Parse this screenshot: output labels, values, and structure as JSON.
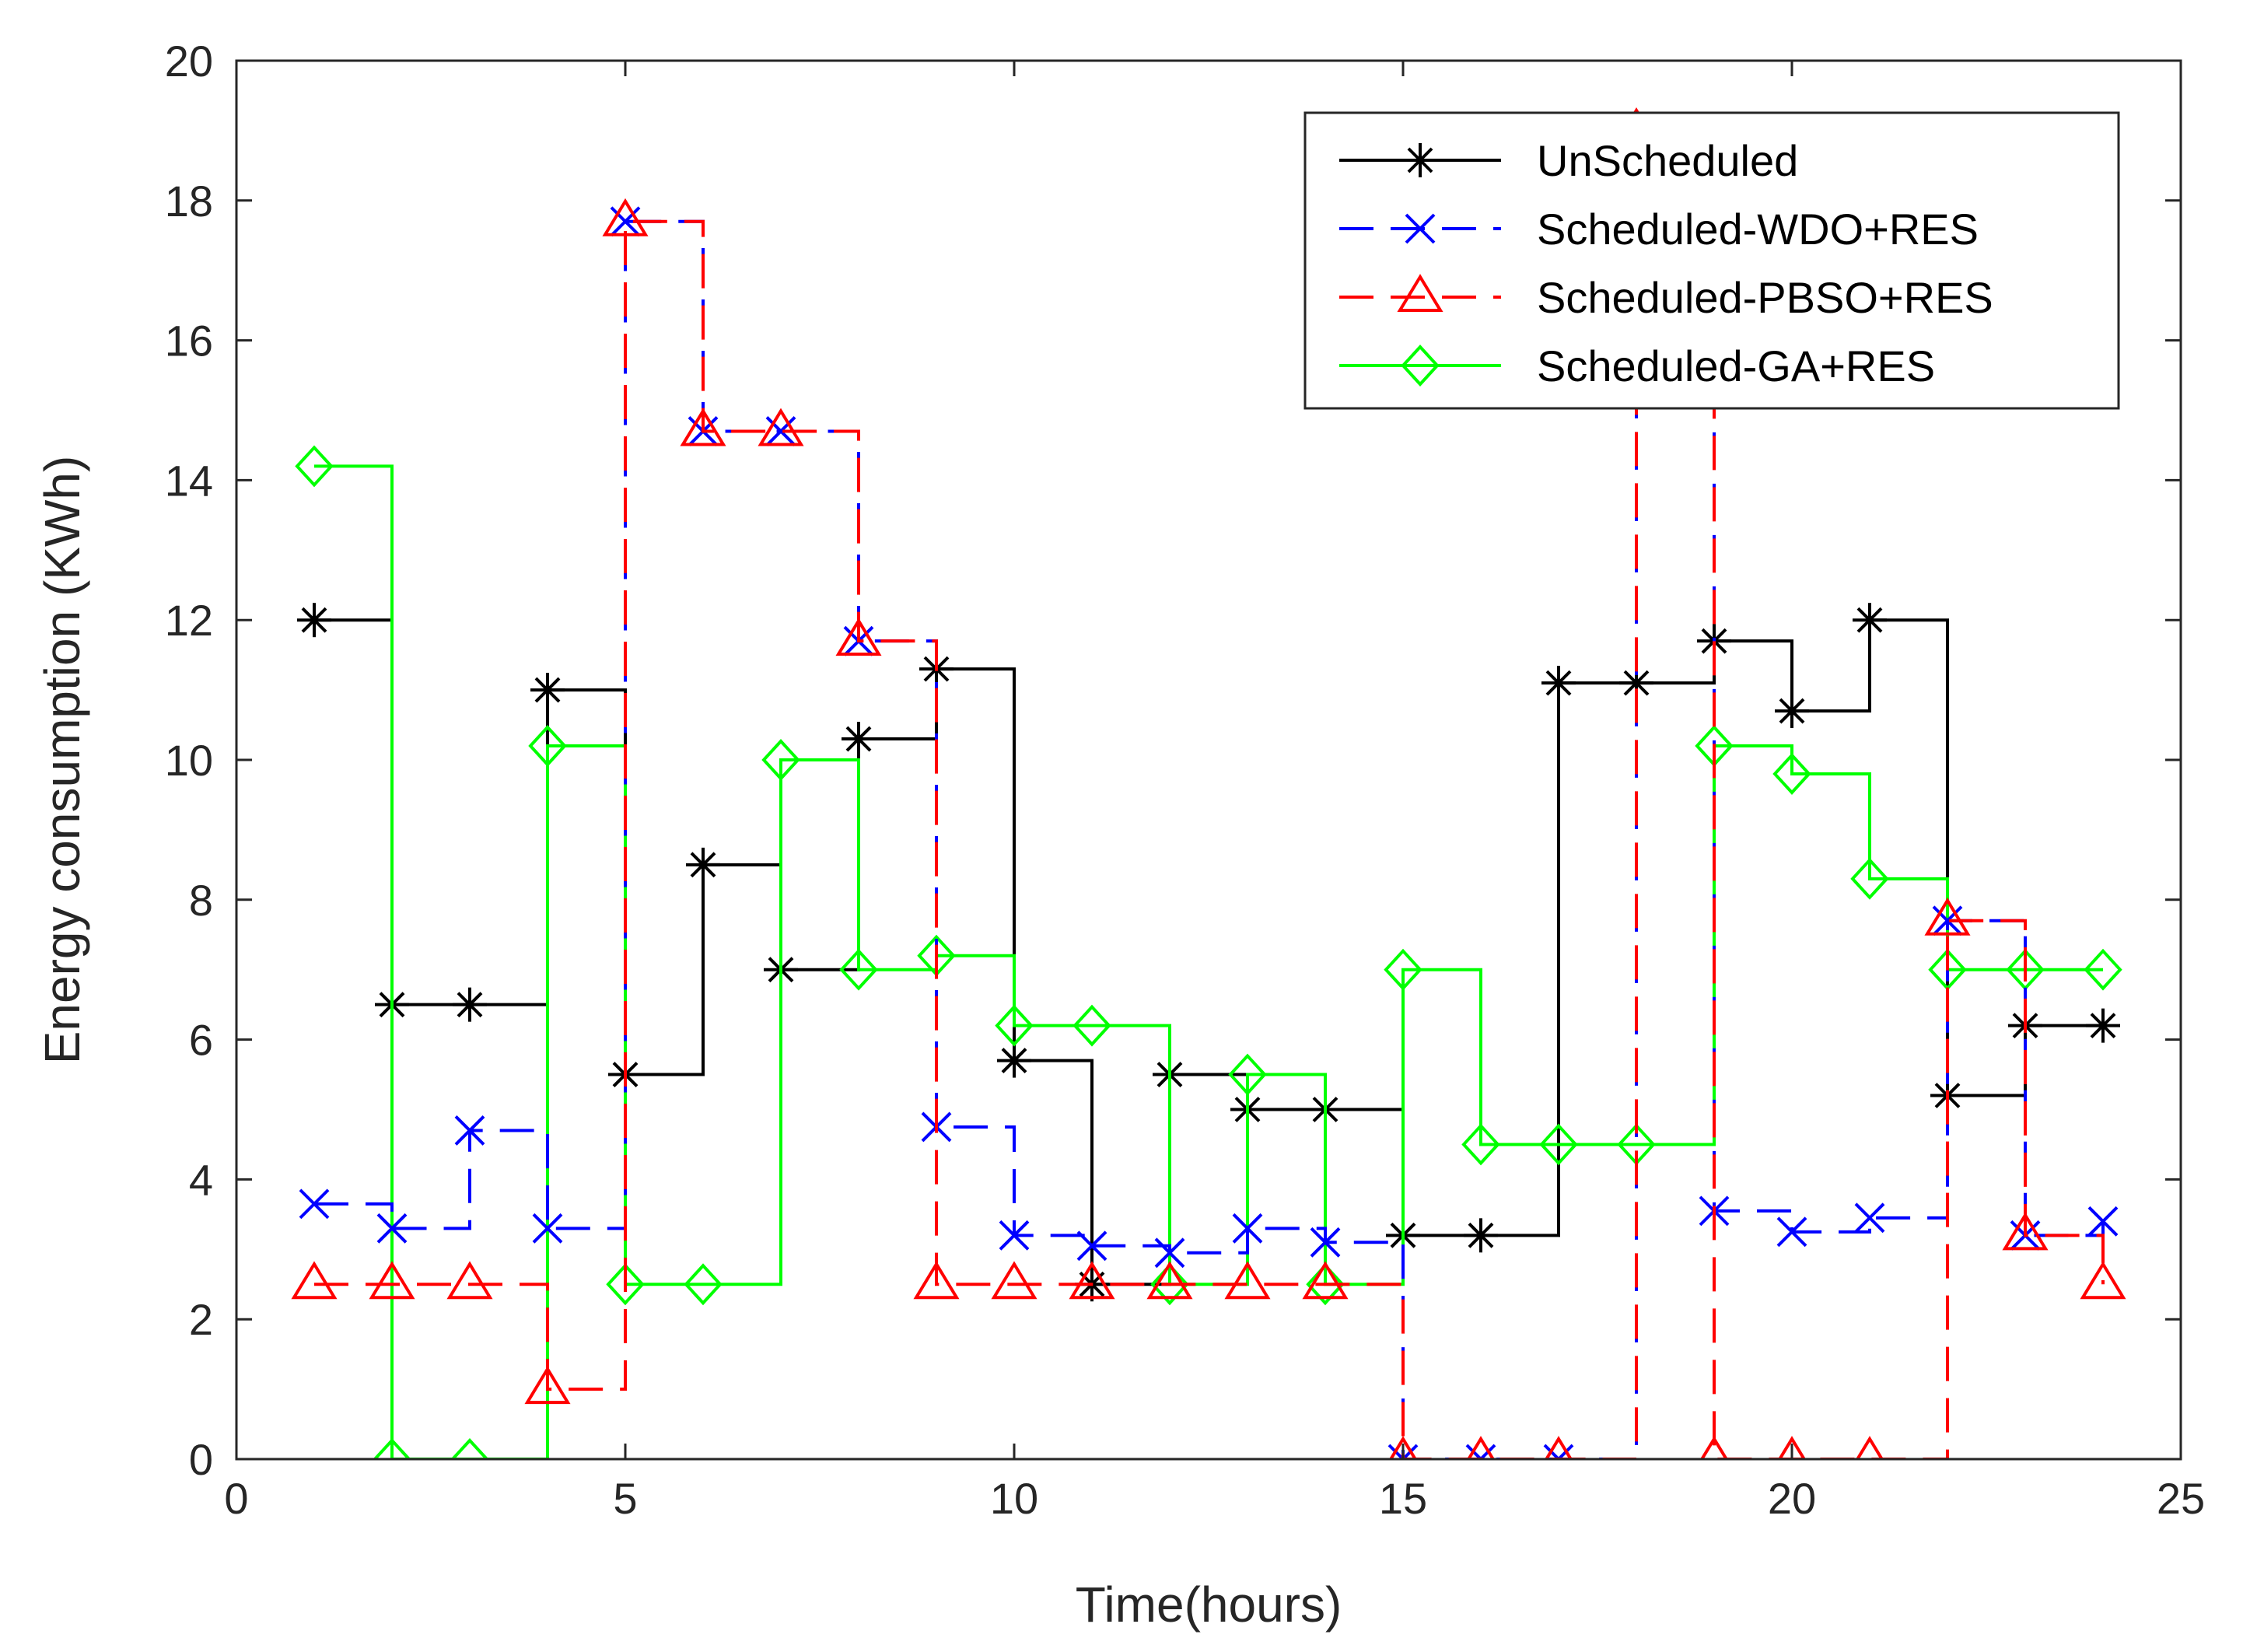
{
  "chart_data": {
    "type": "line",
    "step": "post",
    "xlabel": "Time(hours)",
    "ylabel": "Energy consumption (KWh)",
    "xlim": [
      0,
      25
    ],
    "ylim": [
      0,
      20
    ],
    "xticks": [
      0,
      5,
      10,
      15,
      20,
      25
    ],
    "yticks": [
      0,
      2,
      4,
      6,
      8,
      10,
      12,
      14,
      16,
      18,
      20
    ],
    "grid": false,
    "legend_position": "top-right",
    "x": [
      1,
      2,
      3,
      4,
      5,
      6,
      7,
      8,
      9,
      10,
      11,
      12,
      13,
      14,
      15,
      16,
      17,
      18,
      19,
      20,
      21,
      22,
      23,
      24
    ],
    "series": [
      {
        "name": "UnScheduled",
        "color": "#000000",
        "line_style": "solid",
        "marker": "asterisk",
        "values": [
          12,
          6.5,
          6.5,
          11,
          5.5,
          8.5,
          7,
          10.3,
          11.3,
          5.7,
          2.5,
          5.5,
          5,
          5,
          3.2,
          3.2,
          11.1,
          11.1,
          11.7,
          10.7,
          12,
          5.2,
          6.2,
          6.2
        ]
      },
      {
        "name": "Scheduled-WDO+RES",
        "color": "#0000ff",
        "line_style": "dashed",
        "marker": "x",
        "values": [
          3.65,
          3.3,
          4.7,
          3.3,
          17.7,
          14.7,
          14.7,
          11.7,
          4.75,
          3.2,
          3.05,
          2.95,
          3.3,
          3.1,
          0,
          0,
          0,
          19,
          3.55,
          3.25,
          3.45,
          7.7,
          3.2,
          3.4
        ]
      },
      {
        "name": "Scheduled-PBSO+RES",
        "color": "#ff0000",
        "line_style": "dashed",
        "marker": "triangle",
        "values": [
          2.5,
          2.5,
          2.5,
          1.0,
          17.7,
          14.7,
          14.7,
          11.7,
          2.5,
          2.5,
          2.5,
          2.5,
          2.5,
          2.5,
          0,
          0,
          0,
          19,
          0,
          0,
          0,
          7.7,
          3.2,
          2.5
        ]
      },
      {
        "name": "Scheduled-GA+RES",
        "color": "#00ff00",
        "line_style": "solid",
        "marker": "diamond",
        "values": [
          14.2,
          0,
          0,
          10.2,
          2.5,
          2.5,
          10,
          7,
          7.2,
          6.2,
          6.2,
          2.5,
          5.5,
          2.5,
          7,
          4.5,
          4.5,
          4.5,
          10.2,
          9.8,
          8.3,
          7,
          7,
          7
        ]
      }
    ]
  }
}
